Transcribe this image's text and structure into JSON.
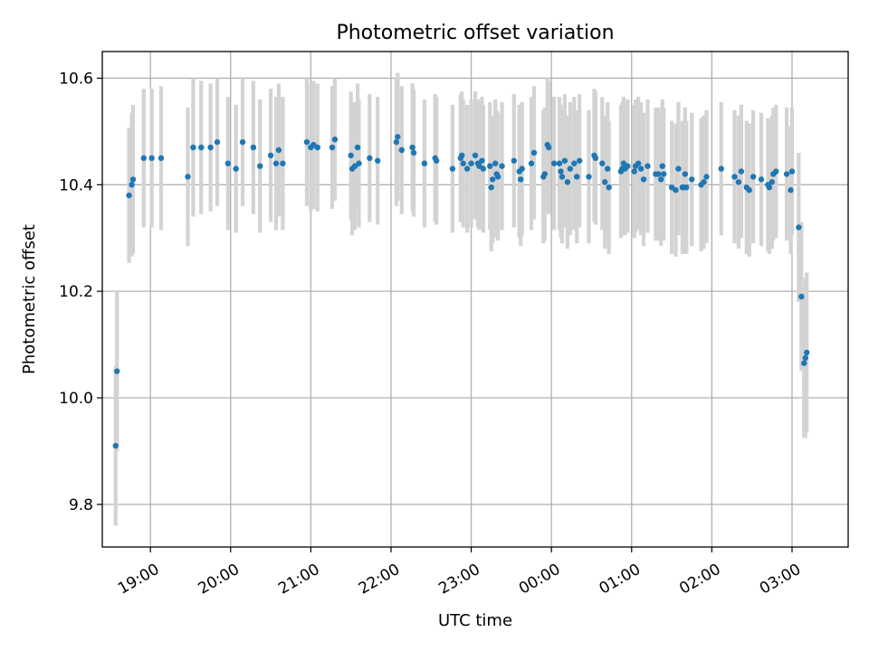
{
  "chart_data": {
    "type": "scatter",
    "title": "Photometric offset variation",
    "xlabel": "UTC time",
    "ylabel": "Photometric offset",
    "x_unit": "UTC time (HH:MM, night crossing midnight)",
    "xlim": [
      "18:24",
      "03:42"
    ],
    "ylim": [
      9.72,
      10.65
    ],
    "x_ticks": [
      "19:00",
      "20:00",
      "21:00",
      "22:00",
      "23:00",
      "00:00",
      "01:00",
      "02:00",
      "03:00"
    ],
    "y_ticks": [
      9.8,
      10.0,
      10.2,
      10.4,
      10.6
    ],
    "y_tick_labels": [
      "9.8",
      "10.0",
      "10.2",
      "10.4",
      "10.6"
    ],
    "grid": true,
    "colors": {
      "points": "#1f77b4",
      "errorbars": "#d3d3d3",
      "grid": "#b0b0b0"
    },
    "points": [
      {
        "t": "18:34",
        "y": 9.91,
        "err": 0.15
      },
      {
        "t": "18:35",
        "y": 10.05,
        "err": 0.15
      },
      {
        "t": "18:44",
        "y": 10.38,
        "err": 0.127
      },
      {
        "t": "18:46",
        "y": 10.4,
        "err": 0.135
      },
      {
        "t": "18:47",
        "y": 10.41,
        "err": 0.14
      },
      {
        "t": "18:55",
        "y": 10.45,
        "err": 0.13
      },
      {
        "t": "19:01",
        "y": 10.45,
        "err": 0.13
      },
      {
        "t": "19:08",
        "y": 10.45,
        "err": 0.135
      },
      {
        "t": "19:28",
        "y": 10.415,
        "err": 0.13
      },
      {
        "t": "19:32",
        "y": 10.47,
        "err": 0.13
      },
      {
        "t": "19:38",
        "y": 10.47,
        "err": 0.125
      },
      {
        "t": "19:45",
        "y": 10.47,
        "err": 0.12
      },
      {
        "t": "19:50",
        "y": 10.48,
        "err": 0.12
      },
      {
        "t": "19:58",
        "y": 10.44,
        "err": 0.125
      },
      {
        "t": "20:04",
        "y": 10.43,
        "err": 0.12
      },
      {
        "t": "20:09",
        "y": 10.48,
        "err": 0.12
      },
      {
        "t": "20:17",
        "y": 10.47,
        "err": 0.125
      },
      {
        "t": "20:22",
        "y": 10.435,
        "err": 0.125
      },
      {
        "t": "20:30",
        "y": 10.455,
        "err": 0.125
      },
      {
        "t": "20:34",
        "y": 10.44,
        "err": 0.125
      },
      {
        "t": "20:36",
        "y": 10.465,
        "err": 0.125
      },
      {
        "t": "20:39",
        "y": 10.44,
        "err": 0.125
      },
      {
        "t": "20:57",
        "y": 10.48,
        "err": 0.12
      },
      {
        "t": "21:00",
        "y": 10.47,
        "err": 0.12
      },
      {
        "t": "21:02",
        "y": 10.475,
        "err": 0.12
      },
      {
        "t": "21:05",
        "y": 10.47,
        "err": 0.12
      },
      {
        "t": "21:16",
        "y": 10.47,
        "err": 0.115
      },
      {
        "t": "21:18",
        "y": 10.485,
        "err": 0.115
      },
      {
        "t": "21:30",
        "y": 10.455,
        "err": 0.12
      },
      {
        "t": "21:31",
        "y": 10.43,
        "err": 0.125
      },
      {
        "t": "21:33",
        "y": 10.435,
        "err": 0.12
      },
      {
        "t": "21:35",
        "y": 10.47,
        "err": 0.12
      },
      {
        "t": "21:36",
        "y": 10.44,
        "err": 0.12
      },
      {
        "t": "21:44",
        "y": 10.45,
        "err": 0.12
      },
      {
        "t": "21:50",
        "y": 10.445,
        "err": 0.12
      },
      {
        "t": "22:04",
        "y": 10.48,
        "err": 0.12
      },
      {
        "t": "22:05",
        "y": 10.49,
        "err": 0.12
      },
      {
        "t": "22:08",
        "y": 10.465,
        "err": 0.12
      },
      {
        "t": "22:16",
        "y": 10.47,
        "err": 0.12
      },
      {
        "t": "22:17",
        "y": 10.46,
        "err": 0.12
      },
      {
        "t": "22:25",
        "y": 10.44,
        "err": 0.12
      },
      {
        "t": "22:33",
        "y": 10.45,
        "err": 0.12
      },
      {
        "t": "22:34",
        "y": 10.445,
        "err": 0.12
      },
      {
        "t": "22:46",
        "y": 10.43,
        "err": 0.12
      },
      {
        "t": "22:52",
        "y": 10.45,
        "err": 0.12
      },
      {
        "t": "22:53",
        "y": 10.455,
        "err": 0.12
      },
      {
        "t": "22:54",
        "y": 10.44,
        "err": 0.12
      },
      {
        "t": "22:57",
        "y": 10.43,
        "err": 0.12
      },
      {
        "t": "23:00",
        "y": 10.44,
        "err": 0.12
      },
      {
        "t": "23:03",
        "y": 10.455,
        "err": 0.12
      },
      {
        "t": "23:05",
        "y": 10.44,
        "err": 0.12
      },
      {
        "t": "23:06",
        "y": 10.435,
        "err": 0.12
      },
      {
        "t": "23:08",
        "y": 10.445,
        "err": 0.12
      },
      {
        "t": "23:09",
        "y": 10.43,
        "err": 0.12
      },
      {
        "t": "23:14",
        "y": 10.435,
        "err": 0.12
      },
      {
        "t": "23:15",
        "y": 10.395,
        "err": 0.12
      },
      {
        "t": "23:16",
        "y": 10.41,
        "err": 0.12
      },
      {
        "t": "23:18",
        "y": 10.44,
        "err": 0.12
      },
      {
        "t": "23:19",
        "y": 10.42,
        "err": 0.12
      },
      {
        "t": "23:20",
        "y": 10.415,
        "err": 0.12
      },
      {
        "t": "23:23",
        "y": 10.435,
        "err": 0.12
      },
      {
        "t": "23:32",
        "y": 10.445,
        "err": 0.125
      },
      {
        "t": "23:36",
        "y": 10.425,
        "err": 0.125
      },
      {
        "t": "23:37",
        "y": 10.41,
        "err": 0.125
      },
      {
        "t": "23:38",
        "y": 10.43,
        "err": 0.125
      },
      {
        "t": "23:45",
        "y": 10.44,
        "err": 0.125
      },
      {
        "t": "23:47",
        "y": 10.46,
        "err": 0.125
      },
      {
        "t": "23:54",
        "y": 10.415,
        "err": 0.125
      },
      {
        "t": "23:55",
        "y": 10.42,
        "err": 0.125
      },
      {
        "t": "23:57",
        "y": 10.475,
        "err": 0.125
      },
      {
        "t": "23:58",
        "y": 10.47,
        "err": 0.125
      },
      {
        "t": "00:02",
        "y": 10.44,
        "err": 0.125
      },
      {
        "t": "00:06",
        "y": 10.44,
        "err": 0.125
      },
      {
        "t": "00:07",
        "y": 10.425,
        "err": 0.125
      },
      {
        "t": "00:08",
        "y": 10.415,
        "err": 0.125
      },
      {
        "t": "00:10",
        "y": 10.445,
        "err": 0.125
      },
      {
        "t": "00:12",
        "y": 10.405,
        "err": 0.125
      },
      {
        "t": "00:14",
        "y": 10.43,
        "err": 0.125
      },
      {
        "t": "00:17",
        "y": 10.44,
        "err": 0.125
      },
      {
        "t": "00:19",
        "y": 10.415,
        "err": 0.125
      },
      {
        "t": "00:21",
        "y": 10.445,
        "err": 0.125
      },
      {
        "t": "00:28",
        "y": 10.415,
        "err": 0.125
      },
      {
        "t": "00:32",
        "y": 10.455,
        "err": 0.125
      },
      {
        "t": "00:33",
        "y": 10.45,
        "err": 0.125
      },
      {
        "t": "00:38",
        "y": 10.44,
        "err": 0.125
      },
      {
        "t": "00:40",
        "y": 10.405,
        "err": 0.125
      },
      {
        "t": "00:42",
        "y": 10.43,
        "err": 0.125
      },
      {
        "t": "00:43",
        "y": 10.395,
        "err": 0.125
      },
      {
        "t": "00:52",
        "y": 10.425,
        "err": 0.125
      },
      {
        "t": "00:53",
        "y": 10.43,
        "err": 0.125
      },
      {
        "t": "00:54",
        "y": 10.44,
        "err": 0.125
      },
      {
        "t": "00:55",
        "y": 10.43,
        "err": 0.125
      },
      {
        "t": "00:57",
        "y": 10.435,
        "err": 0.125
      },
      {
        "t": "01:02",
        "y": 10.425,
        "err": 0.125
      },
      {
        "t": "01:03",
        "y": 10.435,
        "err": 0.125
      },
      {
        "t": "01:05",
        "y": 10.44,
        "err": 0.125
      },
      {
        "t": "01:07",
        "y": 10.43,
        "err": 0.125
      },
      {
        "t": "01:09",
        "y": 10.41,
        "err": 0.125
      },
      {
        "t": "01:12",
        "y": 10.435,
        "err": 0.125
      },
      {
        "t": "01:18",
        "y": 10.42,
        "err": 0.125
      },
      {
        "t": "01:20",
        "y": 10.42,
        "err": 0.125
      },
      {
        "t": "01:22",
        "y": 10.41,
        "err": 0.125
      },
      {
        "t": "01:23",
        "y": 10.435,
        "err": 0.125
      },
      {
        "t": "01:24",
        "y": 10.42,
        "err": 0.125
      },
      {
        "t": "01:30",
        "y": 10.395,
        "err": 0.125
      },
      {
        "t": "01:33",
        "y": 10.39,
        "err": 0.125
      },
      {
        "t": "01:35",
        "y": 10.43,
        "err": 0.125
      },
      {
        "t": "01:38",
        "y": 10.395,
        "err": 0.125
      },
      {
        "t": "01:39",
        "y": 10.395,
        "err": 0.125
      },
      {
        "t": "01:40",
        "y": 10.42,
        "err": 0.125
      },
      {
        "t": "01:41",
        "y": 10.395,
        "err": 0.125
      },
      {
        "t": "01:45",
        "y": 10.41,
        "err": 0.125
      },
      {
        "t": "01:52",
        "y": 10.4,
        "err": 0.125
      },
      {
        "t": "01:54",
        "y": 10.405,
        "err": 0.125
      },
      {
        "t": "01:56",
        "y": 10.415,
        "err": 0.125
      },
      {
        "t": "02:07",
        "y": 10.43,
        "err": 0.125
      },
      {
        "t": "02:17",
        "y": 10.415,
        "err": 0.125
      },
      {
        "t": "02:20",
        "y": 10.405,
        "err": 0.125
      },
      {
        "t": "02:22",
        "y": 10.425,
        "err": 0.125
      },
      {
        "t": "02:26",
        "y": 10.395,
        "err": 0.125
      },
      {
        "t": "02:28",
        "y": 10.39,
        "err": 0.125
      },
      {
        "t": "02:31",
        "y": 10.415,
        "err": 0.125
      },
      {
        "t": "02:37",
        "y": 10.41,
        "err": 0.125
      },
      {
        "t": "02:42",
        "y": 10.4,
        "err": 0.125
      },
      {
        "t": "02:43",
        "y": 10.395,
        "err": 0.125
      },
      {
        "t": "02:45",
        "y": 10.405,
        "err": 0.125
      },
      {
        "t": "02:46",
        "y": 10.42,
        "err": 0.125
      },
      {
        "t": "02:48",
        "y": 10.425,
        "err": 0.125
      },
      {
        "t": "02:56",
        "y": 10.42,
        "err": 0.125
      },
      {
        "t": "02:59",
        "y": 10.39,
        "err": 0.12
      },
      {
        "t": "03:00",
        "y": 10.425,
        "err": 0.12
      },
      {
        "t": "03:05",
        "y": 10.32,
        "err": 0.14
      },
      {
        "t": "03:07",
        "y": 10.19,
        "err": 0.14
      },
      {
        "t": "03:09",
        "y": 10.065,
        "err": 0.14
      },
      {
        "t": "03:10",
        "y": 10.075,
        "err": 0.15
      },
      {
        "t": "03:11",
        "y": 10.085,
        "err": 0.15
      }
    ]
  }
}
